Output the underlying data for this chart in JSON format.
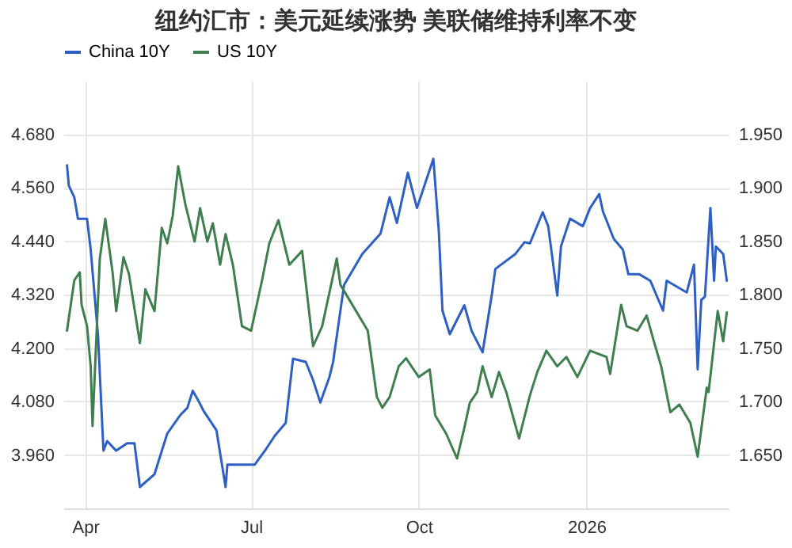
{
  "chart_data": {
    "type": "line",
    "title": "纽约汇市：美元延续涨势 美联储维持利率不变",
    "xlim": [
      "2025-03-20",
      "2026-03-20"
    ],
    "xticks": [
      {
        "value": "2025-04-01",
        "label": "Apr"
      },
      {
        "value": "2025-07-01",
        "label": "Jul"
      },
      {
        "value": "2025-10-01",
        "label": "Oct"
      },
      {
        "value": "2026-01-01",
        "label": "2026"
      }
    ],
    "ylim": [
      3.84,
      4.8
    ],
    "yticks": [
      {
        "value": 3.96,
        "label": "3.960"
      },
      {
        "value": 4.08,
        "label": "4.080"
      },
      {
        "value": 4.2,
        "label": "4.200"
      },
      {
        "value": 4.32,
        "label": "4.320"
      },
      {
        "value": 4.44,
        "label": "4.440"
      },
      {
        "value": 4.56,
        "label": "4.560"
      },
      {
        "value": 4.68,
        "label": "4.680"
      }
    ],
    "y2lim": [
      1.6,
      2.0
    ],
    "y2ticks": [
      {
        "value": 1.65,
        "label": "1.650"
      },
      {
        "value": 1.7,
        "label": "1.700"
      },
      {
        "value": 1.75,
        "label": "1.750"
      },
      {
        "value": 1.8,
        "label": "1.800"
      },
      {
        "value": 1.85,
        "label": "1.850"
      },
      {
        "value": 1.9,
        "label": "1.900"
      },
      {
        "value": 1.95,
        "label": "1.950"
      }
    ],
    "grid": true,
    "legend": "top left",
    "series": [
      {
        "name": "China 10Y",
        "color": "#2d5fc4",
        "axis": "y2",
        "x": [
          "2025-03-22",
          "2025-03-23",
          "2025-03-26",
          "2025-03-28",
          "2025-04-02",
          "2025-04-04",
          "2025-04-08",
          "2025-04-11",
          "2025-04-13",
          "2025-04-18",
          "2025-04-24",
          "2025-04-28",
          "2025-05-01",
          "2025-05-09",
          "2025-05-16",
          "2025-05-23",
          "2025-05-27",
          "2025-05-30",
          "2025-06-02",
          "2025-06-05",
          "2025-06-12",
          "2025-06-17",
          "2025-06-18",
          "2025-06-26",
          "2025-07-03",
          "2025-07-09",
          "2025-07-14",
          "2025-07-20",
          "2025-07-24",
          "2025-07-31",
          "2025-08-04",
          "2025-08-08",
          "2025-08-13",
          "2025-08-15",
          "2025-08-21",
          "2025-08-31",
          "2025-09-10",
          "2025-09-15",
          "2025-09-19",
          "2025-09-25",
          "2025-09-30",
          "2025-10-09",
          "2025-10-12",
          "2025-10-14",
          "2025-10-18",
          "2025-10-26",
          "2025-10-30",
          "2025-11-05",
          "2025-11-10",
          "2025-11-12",
          "2025-11-23",
          "2025-11-28",
          "2025-12-01",
          "2025-12-08",
          "2025-12-11",
          "2025-12-16",
          "2025-12-18",
          "2025-12-23",
          "2025-12-30",
          "2026-01-03",
          "2026-01-08",
          "2026-01-10",
          "2026-01-16",
          "2026-01-21",
          "2026-01-24",
          "2026-01-30",
          "2026-02-05",
          "2026-02-12",
          "2026-02-14",
          "2026-02-25",
          "2026-03-01",
          "2026-03-03",
          "2026-03-05",
          "2026-03-07",
          "2026-03-10",
          "2026-03-12",
          "2026-03-13",
          "2026-03-17",
          "2026-03-19"
        ],
        "values": [
          1.921,
          1.902,
          1.891,
          1.871,
          1.871,
          1.842,
          1.762,
          1.654,
          1.663,
          1.654,
          1.661,
          1.661,
          1.62,
          1.632,
          1.67,
          1.687,
          1.694,
          1.71,
          1.701,
          1.691,
          1.673,
          1.62,
          1.641,
          1.641,
          1.641,
          1.655,
          1.668,
          1.68,
          1.74,
          1.737,
          1.72,
          1.699,
          1.723,
          1.737,
          1.809,
          1.838,
          1.857,
          1.891,
          1.867,
          1.914,
          1.881,
          1.927,
          1.859,
          1.785,
          1.763,
          1.79,
          1.766,
          1.746,
          1.799,
          1.824,
          1.838,
          1.849,
          1.848,
          1.877,
          1.864,
          1.799,
          1.845,
          1.871,
          1.864,
          1.881,
          1.894,
          1.878,
          1.852,
          1.842,
          1.819,
          1.819,
          1.813,
          1.785,
          1.813,
          1.802,
          1.828,
          1.73,
          1.795,
          1.798,
          1.881,
          1.813,
          1.845,
          1.838,
          1.813
        ]
      },
      {
        "name": "US 10Y",
        "color": "#3f7f4f",
        "x": [
          "2025-03-22",
          "2025-03-26",
          "2025-03-29",
          "2025-03-30",
          "2025-04-02",
          "2025-04-04",
          "2025-04-05",
          "2025-04-09",
          "2025-04-12",
          "2025-04-16",
          "2025-04-18",
          "2025-04-22",
          "2025-04-25",
          "2025-05-01",
          "2025-05-04",
          "2025-05-09",
          "2025-05-13",
          "2025-05-16",
          "2025-05-19",
          "2025-05-22",
          "2025-05-26",
          "2025-05-31",
          "2025-06-03",
          "2025-06-07",
          "2025-06-10",
          "2025-06-14",
          "2025-06-17",
          "2025-06-21",
          "2025-06-26",
          "2025-07-01",
          "2025-07-07",
          "2025-07-11",
          "2025-07-16",
          "2025-07-22",
          "2025-07-29",
          "2025-08-04",
          "2025-08-09",
          "2025-08-17",
          "2025-08-19",
          "2025-09-03",
          "2025-09-08",
          "2025-09-11",
          "2025-09-15",
          "2025-09-20",
          "2025-09-24",
          "2025-10-01",
          "2025-10-07",
          "2025-10-10",
          "2025-10-16",
          "2025-10-22",
          "2025-10-26",
          "2025-10-29",
          "2025-11-02",
          "2025-11-05",
          "2025-11-10",
          "2025-11-14",
          "2025-11-18",
          "2025-11-25",
          "2025-12-01",
          "2025-12-05",
          "2025-12-10",
          "2025-12-16",
          "2025-12-21",
          "2025-12-27",
          "2026-01-03",
          "2026-01-12",
          "2026-01-14",
          "2026-01-20",
          "2026-01-23",
          "2026-01-29",
          "2026-02-03",
          "2026-02-07",
          "2026-02-11",
          "2026-02-16",
          "2026-02-21",
          "2026-02-27",
          "2026-03-03",
          "2026-03-08",
          "2026-03-09",
          "2026-03-14",
          "2026-03-17",
          "2026-03-19"
        ],
        "values": [
          4.239,
          4.352,
          4.37,
          4.297,
          4.249,
          4.159,
          4.025,
          4.401,
          4.49,
          4.37,
          4.283,
          4.404,
          4.366,
          4.211,
          4.332,
          4.283,
          4.47,
          4.435,
          4.497,
          4.608,
          4.521,
          4.439,
          4.514,
          4.439,
          4.48,
          4.387,
          4.456,
          4.387,
          4.249,
          4.239,
          4.352,
          4.435,
          4.487,
          4.387,
          4.418,
          4.204,
          4.249,
          4.401,
          4.342,
          4.239,
          4.09,
          4.066,
          4.09,
          4.159,
          4.177,
          4.135,
          4.152,
          4.049,
          4.008,
          3.952,
          4.021,
          4.077,
          4.101,
          4.159,
          4.09,
          4.146,
          4.101,
          3.997,
          4.094,
          4.146,
          4.194,
          4.159,
          4.18,
          4.135,
          4.194,
          4.18,
          4.142,
          4.297,
          4.249,
          4.239,
          4.273,
          4.215,
          4.159,
          4.056,
          4.073,
          4.032,
          3.956,
          4.111,
          4.101,
          4.283,
          4.215,
          4.28
        ]
      }
    ]
  }
}
